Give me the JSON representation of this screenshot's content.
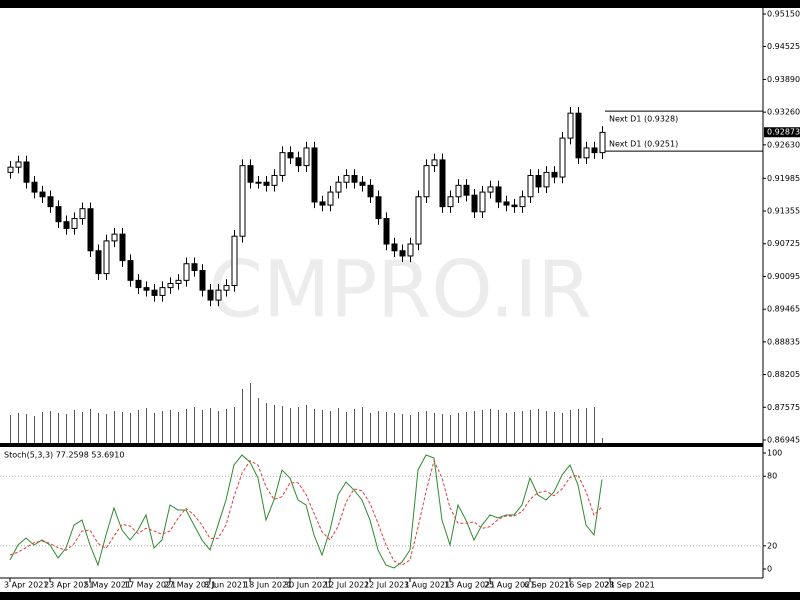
{
  "chart_data": [
    {
      "type": "candlestick",
      "open": [
        0.921,
        0.922,
        0.923,
        0.9191,
        0.9172,
        0.9163,
        0.9144,
        0.9115,
        0.9102,
        0.9121,
        0.914,
        0.9059,
        0.9015,
        0.9078,
        0.9091,
        0.904,
        0.9002,
        0.8988,
        0.8983,
        0.8973,
        0.8988,
        0.8996,
        0.9002,
        0.9034,
        0.9021,
        0.8983,
        0.8964,
        0.8983,
        0.8992,
        0.9087,
        0.9223,
        0.9191,
        0.9191,
        0.9185,
        0.9204,
        0.9248,
        0.9238,
        0.9223,
        0.9257,
        0.9153,
        0.9147,
        0.9172,
        0.9191,
        0.9204,
        0.9191,
        0.9185,
        0.9163,
        0.9121,
        0.9072,
        0.9059,
        0.9049,
        0.9072,
        0.9163,
        0.9223,
        0.9234,
        0.9144,
        0.9163,
        0.9185,
        0.9166,
        0.9134,
        0.9172,
        0.9182,
        0.9153,
        0.9147,
        0.9144,
        0.9163,
        0.9204,
        0.9182,
        0.921,
        0.9201,
        0.9276,
        0.9324,
        0.9238,
        0.9257,
        0.9248
      ],
      "high": [
        0.9232,
        0.9242,
        0.9242,
        0.9203,
        0.9184,
        0.9175,
        0.9156,
        0.9127,
        0.9133,
        0.9152,
        0.9152,
        0.9071,
        0.909,
        0.9103,
        0.9103,
        0.9052,
        0.9014,
        0.9,
        0.8995,
        0.9,
        0.9008,
        0.9014,
        0.9046,
        0.9046,
        0.9033,
        0.8995,
        0.8995,
        0.9004,
        0.9099,
        0.9235,
        0.9235,
        0.9203,
        0.9203,
        0.9216,
        0.926,
        0.926,
        0.925,
        0.9269,
        0.9269,
        0.9165,
        0.9184,
        0.9203,
        0.9216,
        0.9216,
        0.9203,
        0.9197,
        0.9175,
        0.9133,
        0.9084,
        0.9071,
        0.9084,
        0.9175,
        0.9235,
        0.9246,
        0.9246,
        0.9175,
        0.9197,
        0.9197,
        0.9178,
        0.9184,
        0.9194,
        0.9194,
        0.9165,
        0.9159,
        0.9175,
        0.9216,
        0.9216,
        0.9222,
        0.9222,
        0.9288,
        0.9336,
        0.9336,
        0.9269,
        0.9269,
        0.9299
      ],
      "low": [
        0.9198,
        0.9208,
        0.9179,
        0.916,
        0.9151,
        0.9132,
        0.9103,
        0.909,
        0.909,
        0.9109,
        0.9047,
        0.9003,
        0.9003,
        0.9066,
        0.9028,
        0.899,
        0.8976,
        0.8971,
        0.8961,
        0.8961,
        0.8976,
        0.8984,
        0.899,
        0.9009,
        0.8971,
        0.8952,
        0.8952,
        0.8971,
        0.898,
        0.9075,
        0.9179,
        0.9179,
        0.9173,
        0.9173,
        0.9192,
        0.9226,
        0.9211,
        0.9211,
        0.9141,
        0.9135,
        0.9135,
        0.916,
        0.9179,
        0.9179,
        0.9173,
        0.9151,
        0.9109,
        0.906,
        0.9047,
        0.9037,
        0.9037,
        0.906,
        0.9151,
        0.9211,
        0.9132,
        0.9132,
        0.9151,
        0.9154,
        0.9122,
        0.9122,
        0.916,
        0.9141,
        0.9135,
        0.9132,
        0.9132,
        0.9151,
        0.917,
        0.917,
        0.9189,
        0.9189,
        0.9264,
        0.9226,
        0.9226,
        0.9236,
        0.9236
      ],
      "close": [
        0.922,
        0.923,
        0.9191,
        0.9172,
        0.9163,
        0.9144,
        0.9115,
        0.9102,
        0.9121,
        0.914,
        0.9059,
        0.9015,
        0.9078,
        0.9091,
        0.904,
        0.9002,
        0.8988,
        0.8983,
        0.8973,
        0.8988,
        0.8996,
        0.9002,
        0.9034,
        0.9021,
        0.8983,
        0.8964,
        0.8983,
        0.8992,
        0.9087,
        0.9223,
        0.9191,
        0.9191,
        0.9185,
        0.9204,
        0.9248,
        0.9238,
        0.9223,
        0.9257,
        0.9153,
        0.9147,
        0.9172,
        0.9191,
        0.9204,
        0.9191,
        0.9185,
        0.9163,
        0.9121,
        0.9072,
        0.9059,
        0.9049,
        0.9072,
        0.9163,
        0.9223,
        0.9234,
        0.9144,
        0.9163,
        0.9185,
        0.9166,
        0.9134,
        0.9172,
        0.9182,
        0.9153,
        0.9147,
        0.9144,
        0.9163,
        0.9204,
        0.9182,
        0.921,
        0.9201,
        0.9276,
        0.9324,
        0.9238,
        0.9257,
        0.9248,
        0.9287
      ],
      "up_color": "#ffffff",
      "down_color": "#000000",
      "ylim": [
        0.86887,
        0.95266
      ],
      "yticks": [
        {
          "value": 0.9515,
          "label": "0.95150"
        },
        {
          "value": 0.94525,
          "label": "0.94525"
        },
        {
          "value": 0.9389,
          "label": "0.93890"
        },
        {
          "value": 0.9326,
          "label": "0.93260"
        },
        {
          "value": 0.9263,
          "label": "0.92630"
        },
        {
          "value": 0.91985,
          "label": "0.91985"
        },
        {
          "value": 0.91355,
          "label": "0.91355"
        },
        {
          "value": 0.90725,
          "label": "0.90725"
        },
        {
          "value": 0.90095,
          "label": "0.90095"
        },
        {
          "value": 0.89465,
          "label": "0.89465"
        },
        {
          "value": 0.88835,
          "label": "0.88835"
        },
        {
          "value": 0.88205,
          "label": "0.88205"
        },
        {
          "value": 0.87575,
          "label": "0.87575"
        },
        {
          "value": 0.86945,
          "label": "0.86945"
        }
      ],
      "xticks": [
        {
          "value": 0,
          "label": "3 Apr 2021"
        },
        {
          "value": 5,
          "label": "23 Apr 2021"
        },
        {
          "value": 10,
          "label": "5 May 2021"
        },
        {
          "value": 15,
          "label": "17 May 2021"
        },
        {
          "value": 20,
          "label": "27 May 2021"
        },
        {
          "value": 25,
          "label": "8 Jun 2021"
        },
        {
          "value": 30,
          "label": "18 Jun 2021"
        },
        {
          "value": 35,
          "label": "30 Jun 2021"
        },
        {
          "value": 40,
          "label": "12 Jul 2021"
        },
        {
          "value": 45,
          "label": "22 Jul 2021"
        },
        {
          "value": 50,
          "label": "3 Aug 2021"
        },
        {
          "value": 55,
          "label": "13 Aug 2021"
        },
        {
          "value": 60,
          "label": "25 Aug 2021"
        },
        {
          "value": 65,
          "label": "6 Sep 2021"
        },
        {
          "value": 70,
          "label": "16 Sep 2021"
        },
        {
          "value": 75,
          "label": "28 Sep 2021"
        }
      ],
      "current_price": {
        "value": 0.92873,
        "label": "0.92873"
      },
      "annotations": [
        {
          "value": 0.9328,
          "label": "Next D1 (0.9328)"
        },
        {
          "value": 0.9251,
          "label": "Next D1 (0.9251)"
        }
      ],
      "watermark": "CMPRO.IR"
    },
    {
      "type": "volume",
      "color": "#555555",
      "ylim": [
        0,
        100
      ],
      "values": [
        28,
        30,
        29,
        27,
        31,
        32,
        30,
        29,
        33,
        31,
        34,
        30,
        29,
        32,
        31,
        30,
        33,
        35,
        30,
        32,
        33,
        31,
        34,
        36,
        33,
        35,
        32,
        34,
        36,
        54,
        60,
        45,
        40,
        38,
        37,
        35,
        36,
        38,
        34,
        33,
        32,
        35,
        31,
        34,
        36,
        30,
        32,
        31,
        30,
        29,
        28,
        31,
        32,
        30,
        29,
        28,
        30,
        31,
        32,
        33,
        34,
        33,
        30,
        31,
        32,
        33,
        34,
        32,
        31,
        30,
        33,
        34,
        35,
        36,
        5
      ]
    },
    {
      "type": "line",
      "title": "Stoch(5,3,3) 77.2598 53.6910",
      "ylim": [
        -6.9,
        105.2
      ],
      "yticks": [
        0,
        20,
        80,
        100
      ],
      "levels": [
        20,
        80
      ],
      "series": [
        {
          "color": "#2e8b2e",
          "dashed": false,
          "values": [
            7.8,
            20.7,
            26.7,
            20.7,
            25.0,
            20.7,
            9.5,
            18.1,
            37.9,
            42.2,
            20.7,
            3.4,
            29.3,
            52.6,
            33.6,
            25.0,
            33.6,
            46.6,
            18.1,
            25.0,
            55.2,
            50.9,
            50.9,
            37.9,
            25.0,
            16.4,
            37.9,
            59.5,
            89.7,
            98.3,
            92.2,
            78.4,
            42.2,
            59.5,
            85.3,
            78.4,
            59.5,
            55.2,
            29.3,
            12.1,
            33.6,
            63.8,
            75.0,
            68.1,
            59.5,
            42.2,
            16.4,
            3.4,
            0.9,
            6.0,
            16.4,
            85.3,
            98.3,
            95.7,
            42.2,
            20.7,
            55.2,
            42.2,
            25.0,
            37.9,
            46.6,
            44.0,
            46.6,
            46.6,
            55.2,
            78.4,
            63.8,
            59.5,
            66.4,
            81.0,
            89.7,
            72.4,
            37.9,
            29.3,
            77.2598
          ]
        },
        {
          "color": "#e03c3c",
          "dashed": true,
          "values": [
            12.0,
            14.5,
            18.4,
            22.7,
            24.1,
            22.1,
            18.4,
            16.1,
            21.8,
            32.7,
            33.6,
            22.1,
            17.8,
            28.4,
            38.5,
            37.1,
            30.7,
            35.1,
            32.8,
            29.9,
            32.8,
            43.7,
            52.3,
            46.6,
            37.9,
            26.4,
            26.4,
            37.9,
            62.4,
            82.5,
            93.4,
            89.6,
            70.9,
            60.0,
            62.3,
            74.4,
            74.4,
            64.4,
            48.0,
            32.2,
            25.0,
            36.5,
            57.5,
            69.0,
            67.5,
            56.6,
            39.4,
            20.7,
            6.9,
            3.4,
            7.8,
            35.9,
            66.7,
            93.1,
            78.7,
            52.9,
            39.4,
            39.4,
            40.8,
            35.0,
            36.5,
            42.8,
            45.7,
            45.7,
            49.5,
            60.1,
            65.8,
            67.2,
            63.2,
            69.0,
            79.0,
            81.0,
            66.7,
            46.5,
            53.691
          ]
        }
      ]
    }
  ]
}
